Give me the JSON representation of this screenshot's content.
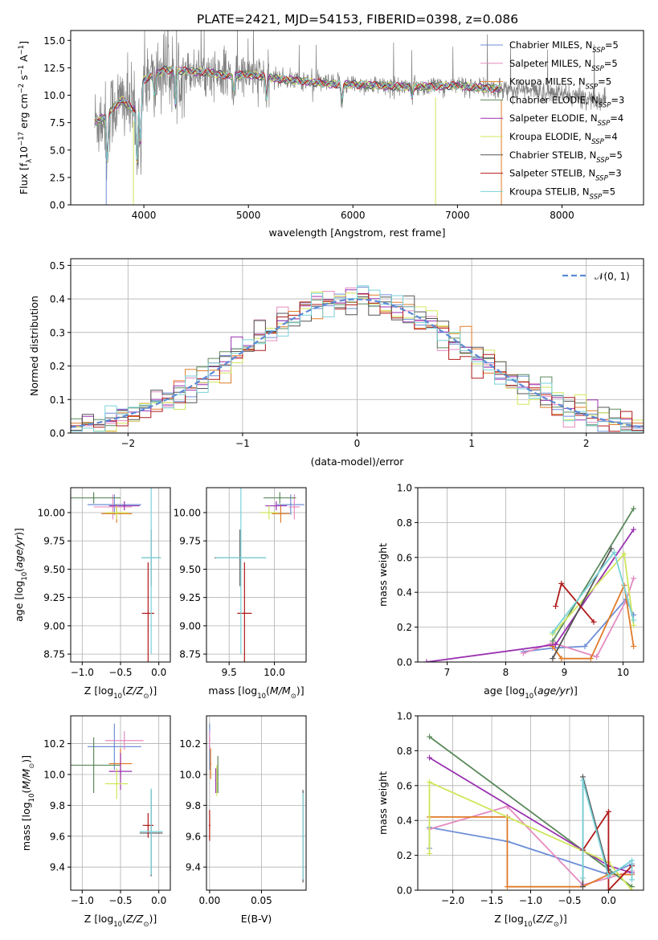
{
  "figure": {
    "title": "PLATE=2421, MJD=54153, FIBERID=0398, z=0.086"
  },
  "model_colors": {
    "Chabrier MILES": "#6f8fd6",
    "Salpeter MILES": "#e48bc0",
    "Kroupa MILES": "#e07b29",
    "Chabrier ELODIE": "#5c8a5c",
    "Salpeter ELODIE": "#9a32b0",
    "Kroupa ELODIE": "#cfe65a",
    "Chabrier STELIB": "#555555",
    "Salpeter STELIB": "#b01a1a",
    "Kroupa STELIB": "#79d2d8"
  },
  "chart_data": [
    {
      "id": "spectrum",
      "type": "line",
      "title": "PLATE=2421, MJD=54153, FIBERID=0398, z=0.086",
      "xlabel": "wavelength [Angstrom, rest frame]",
      "ylabel": "Flux [f_λ 10^-17 erg cm^-2 s^-1 A^-1]",
      "xlim": [
        3300,
        8780
      ],
      "ylim": [
        0,
        15.9
      ],
      "xticks": [
        4000,
        5000,
        6000,
        7000,
        8000
      ],
      "yticks": [
        0.0,
        2.5,
        5.0,
        7.5,
        10.0,
        12.5,
        15.0
      ],
      "ytick_labels": [
        "0.0",
        "2.5",
        "5.0",
        "7.5",
        "10.0",
        "12.5",
        "15.0"
      ],
      "legend_position": "top-right",
      "legend": [
        {
          "name": "Chabrier MILES",
          "nssp": "5",
          "color": "#6f8fd6"
        },
        {
          "name": "Salpeter MILES",
          "nssp": "5",
          "color": "#e48bc0"
        },
        {
          "name": "Kroupa MILES",
          "nssp": "5",
          "color": "#e07b29"
        },
        {
          "name": "Chabrier ELODIE",
          "nssp": "3",
          "color": "#5c8a5c"
        },
        {
          "name": "Salpeter ELODIE",
          "nssp": "4",
          "color": "#9a32b0"
        },
        {
          "name": "Kroupa ELODIE",
          "nssp": "4",
          "color": "#cfe65a"
        },
        {
          "name": "Chabrier STELIB",
          "nssp": "5",
          "color": "#555555"
        },
        {
          "name": "Salpeter STELIB",
          "nssp": "3",
          "color": "#b01a1a"
        },
        {
          "name": "Kroupa STELIB",
          "nssp": "5",
          "color": "#79d2d8"
        }
      ],
      "data_color": "#808080",
      "continuum": {
        "x": [
          3300,
          3550,
          3650,
          3700,
          3800,
          3900,
          3950,
          4000,
          4100,
          4200,
          4400,
          4600,
          4800,
          5000,
          5200,
          5400,
          5600,
          5800,
          6000,
          6200,
          6400,
          6600,
          6800,
          7000,
          7200,
          7400,
          7600,
          7800,
          8000,
          8200,
          8400
        ],
        "y": [
          7.4,
          7.6,
          8.2,
          8.8,
          9.6,
          8.6,
          9.8,
          11.4,
          11.9,
          12.3,
          12.2,
          12.1,
          11.8,
          11.9,
          11.6,
          11.4,
          11.2,
          11.0,
          11.0,
          10.9,
          10.8,
          10.8,
          10.8,
          10.9,
          10.7,
          10.6,
          10.5,
          10.3,
          10.1,
          9.8,
          9.6
        ]
      },
      "absorption_features": [
        {
          "x": 3650,
          "depth": 4.5
        },
        {
          "x": 3934,
          "depth": 6.0
        },
        {
          "x": 3968,
          "depth": 5.0
        },
        {
          "x": 4102,
          "depth": 2.0
        },
        {
          "x": 4304,
          "depth": 3.5
        },
        {
          "x": 4861,
          "depth": 1.5
        },
        {
          "x": 5175,
          "depth": 2.0
        },
        {
          "x": 5895,
          "depth": 1.6
        },
        {
          "x": 6563,
          "depth": 1.0
        }
      ],
      "model_range": [
        3530,
        7420
      ]
    },
    {
      "id": "residuals",
      "type": "histogram",
      "xlabel": "(data-model)/error",
      "ylabel": "Normed distribution",
      "xlim": [
        -2.5,
        2.5
      ],
      "ylim": [
        0,
        0.52
      ],
      "xticks": [
        -2,
        -1,
        0,
        1,
        2
      ],
      "yticks": [
        0.0,
        0.1,
        0.2,
        0.3,
        0.4,
        0.5
      ],
      "ytick_labels": [
        "0.0",
        "0.1",
        "0.2",
        "0.3",
        "0.4",
        "0.5"
      ],
      "bin_width": 0.1,
      "reference_curve": {
        "name": "N(0,1)",
        "color": "#5b8ad6",
        "dash": true
      },
      "legend_position": "top-right"
    },
    {
      "id": "age-vs-Z",
      "type": "scatter",
      "xlabel": "Z [log10(Z/Z⊙)]",
      "ylabel": "age [log10(age/yr)]",
      "xlim": [
        -1.15,
        0.15
      ],
      "ylim": [
        8.68,
        10.22
      ],
      "xticks": [
        -1.0,
        -0.5,
        0.0
      ],
      "xtick_labels": [
        "−1.0",
        "−0.5",
        "0.0"
      ],
      "yticks": [
        8.75,
        9.0,
        9.25,
        9.5,
        9.75,
        10.0
      ],
      "ytick_labels": [
        "8.75",
        "9.00",
        "9.25",
        "9.50",
        "9.75",
        "10.00"
      ],
      "points": [
        {
          "model": "Chabrier MILES",
          "x": -0.58,
          "y": 10.07,
          "xerr": 0.35,
          "yerr": 0.09
        },
        {
          "model": "Salpeter MILES",
          "x": -0.6,
          "y": 10.05,
          "xerr": 0.25,
          "yerr": 0.11
        },
        {
          "model": "Kroupa MILES",
          "x": -0.55,
          "y": 9.99,
          "xerr": 0.2,
          "yerr": 0.08
        },
        {
          "model": "Chabrier ELODIE",
          "x": -0.85,
          "y": 10.13,
          "xerr": 0.35,
          "yerr": 0.05
        },
        {
          "model": "Salpeter ELODIE",
          "x": -0.45,
          "y": 10.06,
          "xerr": 0.2,
          "yerr": 0.04
        },
        {
          "model": "Kroupa ELODIE",
          "x": -0.55,
          "y": 10.0,
          "xerr": 0.15,
          "yerr": 0.06
        },
        {
          "model": "Chabrier STELIB",
          "x": -0.1,
          "y": 9.6,
          "xerr": 0.12,
          "yerr": 0.25
        },
        {
          "model": "Salpeter STELIB",
          "x": -0.14,
          "y": 9.11,
          "xerr": 0.08,
          "yerr": 0.45
        },
        {
          "model": "Kroupa STELIB",
          "x": -0.1,
          "y": 9.6,
          "xerr": 0.13,
          "yerr": 0.85
        }
      ]
    },
    {
      "id": "age-vs-mass",
      "type": "scatter",
      "xlabel": "mass [log10(M/M⊙)]",
      "ylabel": "",
      "xlim": [
        9.25,
        10.35
      ],
      "ylim": [
        8.68,
        10.22
      ],
      "xticks": [
        9.5,
        10.0
      ],
      "xtick_labels": [
        "9.5",
        "10.0"
      ],
      "yticks": [
        8.75,
        9.0,
        9.25,
        9.5,
        9.75,
        10.0
      ],
      "ytick_labels": [
        "8.75",
        "9.00",
        "9.25",
        "9.50",
        "9.75",
        "10.00"
      ],
      "points": [
        {
          "model": "Chabrier MILES",
          "x": 10.18,
          "y": 10.07,
          "xerr": 0.15,
          "yerr": 0.09
        },
        {
          "model": "Salpeter MILES",
          "x": 10.22,
          "y": 10.05,
          "xerr": 0.06,
          "yerr": 0.11
        },
        {
          "model": "Kroupa MILES",
          "x": 10.07,
          "y": 9.99,
          "xerr": 0.1,
          "yerr": 0.08
        },
        {
          "model": "Chabrier ELODIE",
          "x": 10.06,
          "y": 10.13,
          "xerr": 0.18,
          "yerr": 0.05
        },
        {
          "model": "Salpeter ELODIE",
          "x": 10.02,
          "y": 10.06,
          "xerr": 0.12,
          "yerr": 0.04
        },
        {
          "model": "Kroupa ELODIE",
          "x": 9.94,
          "y": 10.0,
          "xerr": 0.1,
          "yerr": 0.06
        },
        {
          "model": "Chabrier STELIB",
          "x": 9.62,
          "y": 9.6,
          "xerr": 0.28,
          "yerr": 0.25
        },
        {
          "model": "Salpeter STELIB",
          "x": 9.67,
          "y": 9.11,
          "xerr": 0.08,
          "yerr": 0.45
        },
        {
          "model": "Kroupa STELIB",
          "x": 9.63,
          "y": 9.6,
          "xerr": 0.28,
          "yerr": 0.85
        }
      ]
    },
    {
      "id": "weight-vs-age",
      "type": "line",
      "xlabel": "age [log10(age/yr)]",
      "ylabel": "mass weight",
      "xlim": [
        6.5,
        10.35
      ],
      "ylim": [
        0,
        1.0
      ],
      "xticks": [
        7,
        8,
        9,
        10
      ],
      "yticks": [
        0.0,
        0.2,
        0.4,
        0.6,
        0.8,
        1.0
      ],
      "ytick_labels": [
        "0.0",
        "0.2",
        "0.4",
        "0.6",
        "0.8",
        "1.0"
      ],
      "series": [
        {
          "model": "Chabrier MILES",
          "x": [
            8.3,
            8.8,
            9.35,
            10.05,
            10.18
          ],
          "y": [
            0.06,
            0.08,
            0.09,
            0.36,
            0.27
          ]
        },
        {
          "model": "Salpeter MILES",
          "x": [
            8.3,
            8.8,
            9.55,
            10.05,
            10.18
          ],
          "y": [
            0.05,
            0.11,
            0.03,
            0.35,
            0.48
          ]
        },
        {
          "model": "Kroupa MILES",
          "x": [
            8.8,
            8.95,
            9.45,
            10.02,
            10.18
          ],
          "y": [
            0.09,
            0.02,
            0.02,
            0.44,
            0.09
          ]
        },
        {
          "model": "Chabrier ELODIE",
          "x": [
            8.8,
            10.18
          ],
          "y": [
            0.12,
            0.88
          ]
        },
        {
          "model": "Salpeter ELODIE",
          "x": [
            6.65,
            8.85,
            10.18
          ],
          "y": [
            0.0,
            0.1,
            0.76
          ]
        },
        {
          "model": "Kroupa ELODIE",
          "x": [
            8.8,
            10.02,
            10.18
          ],
          "y": [
            0.16,
            0.62,
            0.21
          ]
        },
        {
          "model": "Chabrier STELIB",
          "x": [
            8.8,
            9.8
          ],
          "y": [
            0.02,
            0.65
          ]
        },
        {
          "model": "Salpeter STELIB",
          "x": [
            8.85,
            8.95,
            9.5
          ],
          "y": [
            0.32,
            0.45,
            0.23
          ]
        },
        {
          "model": "Kroupa STELIB",
          "x": [
            8.8,
            9.85,
            10.18
          ],
          "y": [
            0.17,
            0.63,
            0.24
          ]
        }
      ]
    },
    {
      "id": "mass-vs-Z",
      "type": "scatter",
      "xlabel": "Z [log10(Z/Z⊙)]",
      "ylabel": "mass [log10(M/M⊙)]",
      "xlim": [
        -1.15,
        0.15
      ],
      "ylim": [
        9.25,
        10.38
      ],
      "xticks": [
        -1.0,
        -0.5,
        0.0
      ],
      "xtick_labels": [
        "−1.0",
        "−0.5",
        "0.0"
      ],
      "yticks": [
        9.4,
        9.6,
        9.8,
        10.0,
        10.2
      ],
      "ytick_labels": [
        "9.4",
        "9.6",
        "9.8",
        "10.0",
        "10.2"
      ],
      "points": [
        {
          "model": "Chabrier MILES",
          "x": -0.58,
          "y": 10.18,
          "xerr": 0.35,
          "yerr": 0.15
        },
        {
          "model": "Salpeter MILES",
          "x": -0.45,
          "y": 10.22,
          "xerr": 0.25,
          "yerr": 0.06
        },
        {
          "model": "Kroupa MILES",
          "x": -0.5,
          "y": 10.07,
          "xerr": 0.15,
          "yerr": 0.1
        },
        {
          "model": "Chabrier ELODIE",
          "x": -0.85,
          "y": 10.06,
          "xerr": 0.35,
          "yerr": 0.18
        },
        {
          "model": "Salpeter ELODIE",
          "x": -0.5,
          "y": 10.02,
          "xerr": 0.15,
          "yerr": 0.12
        },
        {
          "model": "Kroupa ELODIE",
          "x": -0.55,
          "y": 9.94,
          "xerr": 0.15,
          "yerr": 0.1
        },
        {
          "model": "Chabrier STELIB",
          "x": -0.1,
          "y": 9.62,
          "xerr": 0.15,
          "yerr": 0.28
        },
        {
          "model": "Salpeter STELIB",
          "x": -0.14,
          "y": 9.67,
          "xerr": 0.07,
          "yerr": 0.08
        },
        {
          "model": "Kroupa STELIB",
          "x": -0.1,
          "y": 9.63,
          "xerr": 0.15,
          "yerr": 0.28
        }
      ]
    },
    {
      "id": "mass-vs-EBV",
      "type": "scatter",
      "xlabel": "E(B-V)",
      "ylabel": "",
      "xlim": [
        -0.003,
        0.093
      ],
      "ylim": [
        9.25,
        10.38
      ],
      "xticks": [
        0.0,
        0.05
      ],
      "xtick_labels": [
        "0.00",
        "0.05"
      ],
      "yticks": [
        9.4,
        9.6,
        9.8,
        10.0,
        10.2
      ],
      "ytick_labels": [
        "9.4",
        "9.6",
        "9.8",
        "10.0",
        "10.2"
      ],
      "points": [
        {
          "model": "Chabrier MILES",
          "x": 0.0,
          "y": 10.18,
          "xerr": 0.0,
          "yerr": 0.15
        },
        {
          "model": "Salpeter MILES",
          "x": 0.0,
          "y": 10.22,
          "xerr": 0.0,
          "yerr": 0.06
        },
        {
          "model": "Kroupa MILES",
          "x": 0.001,
          "y": 10.07,
          "xerr": 0.0,
          "yerr": 0.1
        },
        {
          "model": "Chabrier ELODIE",
          "x": 0.008,
          "y": 10.0,
          "xerr": 0.0,
          "yerr": 0.12
        },
        {
          "model": "Salpeter ELODIE",
          "x": 0.006,
          "y": 9.96,
          "xerr": 0.0,
          "yerr": 0.08
        },
        {
          "model": "Kroupa ELODIE",
          "x": 0.007,
          "y": 9.96,
          "xerr": 0.0,
          "yerr": 0.1
        },
        {
          "model": "Chabrier STELIB",
          "x": 0.09,
          "y": 9.6,
          "xerr": 0.0,
          "yerr": 0.3
        },
        {
          "model": "Salpeter STELIB",
          "x": 0.0,
          "y": 9.67,
          "xerr": 0.0,
          "yerr": 0.1
        },
        {
          "model": "Kroupa STELIB",
          "x": 0.09,
          "y": 9.6,
          "xerr": 0.0,
          "yerr": 0.28
        }
      ]
    },
    {
      "id": "weight-vs-Z",
      "type": "line",
      "xlabel": "Z [log10(Z/Z⊙)]",
      "ylabel": "mass weight",
      "xlim": [
        -2.45,
        0.45
      ],
      "ylim": [
        0,
        1.0
      ],
      "xticks": [
        -2.0,
        -1.5,
        -1.0,
        -0.5,
        0.0
      ],
      "xtick_labels": [
        "−2.0",
        "−1.5",
        "−1.0",
        "−0.5",
        "0.0"
      ],
      "yticks": [
        0.0,
        0.2,
        0.4,
        0.6,
        0.8,
        1.0
      ],
      "ytick_labels": [
        "0.0",
        "0.2",
        "0.4",
        "0.6",
        "0.8",
        "1.0"
      ],
      "series": [
        {
          "model": "Chabrier MILES",
          "x": [
            -2.3,
            -2.3,
            -1.3,
            0.0,
            0.3
          ],
          "y": [
            0.24,
            0.36,
            0.28,
            0.09,
            0.15
          ]
        },
        {
          "model": "Salpeter MILES",
          "x": [
            -2.3,
            -1.3,
            -0.33,
            0.0,
            0.3
          ],
          "y": [
            0.35,
            0.48,
            0.03,
            0.07,
            0.11
          ]
        },
        {
          "model": "Kroupa MILES",
          "x": [
            -2.3,
            -1.3,
            -1.3,
            -0.33,
            0.0,
            0.3
          ],
          "y": [
            0.42,
            0.42,
            0.02,
            0.02,
            0.09,
            0.09
          ]
        },
        {
          "model": "Chabrier ELODIE",
          "x": [
            -2.3,
            0.0,
            0.3
          ],
          "y": [
            0.88,
            0.12,
            0.02
          ]
        },
        {
          "model": "Salpeter ELODIE",
          "x": [
            -2.3,
            0.0,
            0.3
          ],
          "y": [
            0.76,
            0.14,
            0.1
          ]
        },
        {
          "model": "Kroupa ELODIE",
          "x": [
            -2.3,
            -2.3,
            0.0,
            0.3
          ],
          "y": [
            0.21,
            0.62,
            0.16,
            0.0
          ]
        },
        {
          "model": "Chabrier STELIB",
          "x": [
            -0.33,
            -0.33,
            0.0
          ],
          "y": [
            0.02,
            0.65,
            0.1
          ]
        },
        {
          "model": "Salpeter STELIB",
          "x": [
            -0.33,
            0.0,
            0.0,
            0.3
          ],
          "y": [
            0.23,
            0.45,
            0.0,
            0.14
          ]
        },
        {
          "model": "Kroupa STELIB",
          "x": [
            -0.33,
            -0.33,
            0.0,
            0.3,
            0.3
          ],
          "y": [
            0.07,
            0.63,
            0.08,
            0.17,
            0.06
          ]
        }
      ]
    }
  ]
}
